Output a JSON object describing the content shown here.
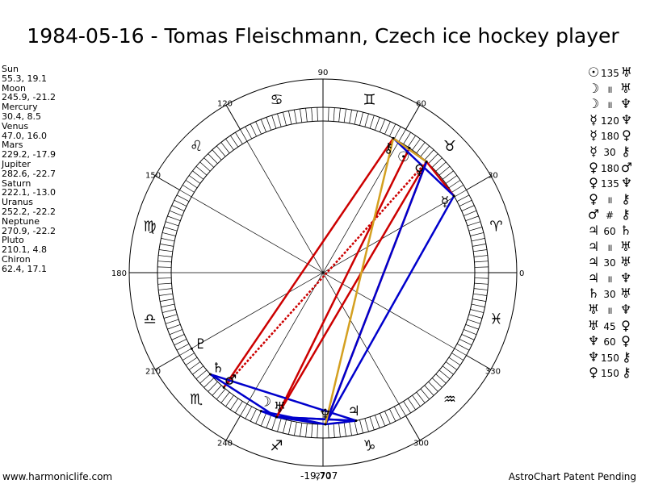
{
  "title": "1984-05-16 - Tomas Fleischmann, Czech ice hockey player",
  "planets": [
    {
      "name": "Sun",
      "coords": "55.3, 19.1",
      "lon": 55.3,
      "glyph": "☉"
    },
    {
      "name": "Moon",
      "coords": "245.9, -21.2",
      "lon": 245.9,
      "glyph": "☽"
    },
    {
      "name": "Mercury",
      "coords": "30.4, 8.5",
      "lon": 30.4,
      "glyph": "☿"
    },
    {
      "name": "Venus",
      "coords": "47.0, 16.0",
      "lon": 47.0,
      "glyph": "♀"
    },
    {
      "name": "Mars",
      "coords": "229.2, -17.9",
      "lon": 229.2,
      "glyph": "♂"
    },
    {
      "name": "Jupiter",
      "coords": "282.6, -22.7",
      "lon": 282.6,
      "glyph": "♃"
    },
    {
      "name": "Saturn",
      "coords": "222.1, -13.0",
      "lon": 222.1,
      "glyph": "♄"
    },
    {
      "name": "Uranus",
      "coords": "252.2, -22.2",
      "lon": 252.2,
      "glyph": "♅"
    },
    {
      "name": "Neptune",
      "coords": "270.9, -22.2",
      "lon": 270.9,
      "glyph": "♆"
    },
    {
      "name": "Pluto",
      "coords": "210.1, 4.8",
      "lon": 210.1,
      "glyph": "♇"
    },
    {
      "name": "Chiron",
      "coords": "62.4, 17.1",
      "lon": 62.4,
      "glyph": "⚷"
    }
  ],
  "aspects": [
    {
      "p1": "☉",
      "type": "135",
      "p2": "♅",
      "color": "#cc0000"
    },
    {
      "p1": "☽",
      "type": "॥",
      "p2": "♅",
      "color": "#0000cc"
    },
    {
      "p1": "☽",
      "type": "॥",
      "p2": "♆",
      "color": "#0000cc"
    },
    {
      "p1": "☿",
      "type": "120",
      "p2": "♆",
      "color": "#0000cc"
    },
    {
      "p1": "☿",
      "type": "180",
      "p2": "♀",
      "color": "#cc0000"
    },
    {
      "p1": "☿",
      "type": "30",
      "p2": "⚷",
      "color": "#0000cc"
    },
    {
      "p1": "♀",
      "type": "180",
      "p2": "♂",
      "color": "#cc0000"
    },
    {
      "p1": "♀",
      "type": "135",
      "p2": "♆",
      "color": "#cc0000"
    },
    {
      "p1": "♀",
      "type": "॥",
      "p2": "⚷",
      "color": "#0000cc"
    },
    {
      "p1": "♂",
      "type": "#",
      "p2": "⚷",
      "color": "#cc0000"
    },
    {
      "p1": "♃",
      "type": "60",
      "p2": "♄",
      "color": "#0000cc"
    },
    {
      "p1": "♃",
      "type": "॥",
      "p2": "♅",
      "color": "#0000cc"
    },
    {
      "p1": "♃",
      "type": "30",
      "p2": "♅",
      "color": "#0000cc"
    },
    {
      "p1": "♃",
      "type": "॥",
      "p2": "♆",
      "color": "#0000cc"
    },
    {
      "p1": "♄",
      "type": "30",
      "p2": "♅",
      "color": "#0000cc"
    },
    {
      "p1": "♅",
      "type": "॥",
      "p2": "♆",
      "color": "#0000cc"
    },
    {
      "p1": "♅",
      "type": "45",
      "p2": "♀",
      "color": "#cc0000"
    },
    {
      "p1": "♆",
      "type": "60",
      "p2": "♀",
      "color": "#0000cc"
    },
    {
      "p1": "♆",
      "type": "150",
      "p2": "⚷",
      "color": "#d4a020"
    },
    {
      "p1": "♀",
      "type": "150",
      "p2": "⚷",
      "color": "#d4a020"
    }
  ],
  "zodiac_signs": [
    {
      "glyph": "♈",
      "lon": 15
    },
    {
      "glyph": "♉",
      "lon": 45
    },
    {
      "glyph": "♊",
      "lon": 75
    },
    {
      "glyph": "♋",
      "lon": 105
    },
    {
      "glyph": "♌",
      "lon": 135
    },
    {
      "glyph": "♍",
      "lon": 165
    },
    {
      "glyph": "♎",
      "lon": 195
    },
    {
      "glyph": "♏",
      "lon": 225
    },
    {
      "glyph": "♐",
      "lon": 255
    },
    {
      "glyph": "♑",
      "lon": 285
    },
    {
      "glyph": "♒",
      "lon": 315
    },
    {
      "glyph": "♓",
      "lon": 345
    }
  ],
  "degree_labels": [
    "0",
    "30",
    "60",
    "90",
    "120",
    "150",
    "180",
    "210",
    "240",
    "270",
    "300",
    "330"
  ],
  "bottom_value": "-19,707",
  "footer_left": "www.harmoniclife.com",
  "footer_right": "AstroChart Patent Pending",
  "colors": {
    "hard": "#cc0000",
    "soft": "#0000cc",
    "minor": "#d4a020",
    "ink": "#000000"
  }
}
